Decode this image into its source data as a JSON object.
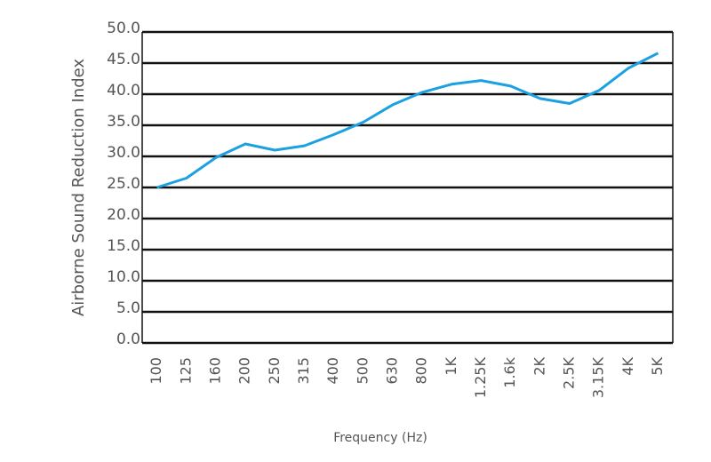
{
  "chart_data": {
    "type": "line",
    "y_label": "Airborne Sound Reduction Index",
    "x_label": "Frequency (Hz)",
    "categories": [
      "100",
      "125",
      "160",
      "200",
      "250",
      "315",
      "400",
      "500",
      "630",
      "800",
      "1K",
      "1.25K",
      "1.6k",
      "2K",
      "2.5K",
      "3.15K",
      "4K",
      "5K"
    ],
    "series": [
      {
        "name": "Airborne Sound Reduction Index",
        "color": "#1ba1e2",
        "values": [
          25,
          26.5,
          29.8,
          32,
          31,
          31.7,
          33.5,
          35.5,
          38.3,
          40.3,
          41.6,
          42.2,
          41.3,
          39.3,
          38.5,
          40.6,
          44.2,
          46.6
        ]
      }
    ],
    "ylim": [
      0,
      50
    ],
    "yticks": [
      {
        "value": 0,
        "label": "0.0"
      },
      {
        "value": 5,
        "label": "5.0"
      },
      {
        "value": 10,
        "label": "10.0"
      },
      {
        "value": 15,
        "label": "15.0"
      },
      {
        "value": 20,
        "label": "20.0"
      },
      {
        "value": 25,
        "label": "25.0"
      },
      {
        "value": 30,
        "label": "30.0"
      },
      {
        "value": 35,
        "label": "35.0"
      },
      {
        "value": 40,
        "label": "40.0"
      },
      {
        "value": 45,
        "label": "45.0"
      },
      {
        "value": 50,
        "label": "50.0"
      }
    ],
    "grid": true
  }
}
